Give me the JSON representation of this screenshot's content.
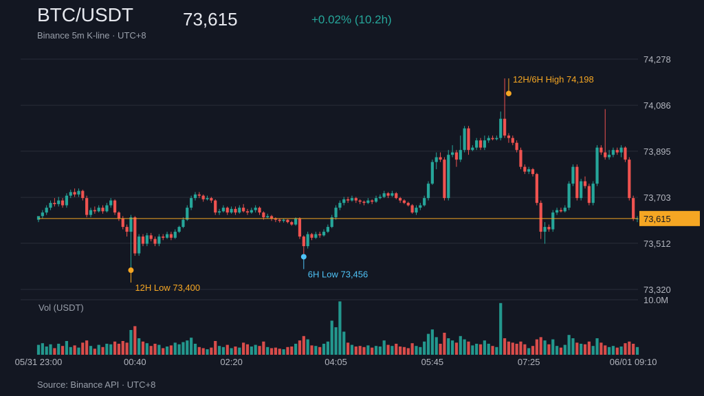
{
  "header": {
    "pair": "BTC/USDT",
    "last_price": "73,615",
    "change": "+0.02% (10.2h)",
    "subtitle": "Binance 5m K-line · UTC+8"
  },
  "footer": {
    "source": "Source: Binance API · UTC+8"
  },
  "colors": {
    "up": "#26a69a",
    "down": "#ef5350",
    "marker": "#f5a623",
    "low_marker": "#4fc3f7",
    "background": "#131722"
  },
  "chart_data": {
    "type": "candlestick",
    "price_axis": {
      "ylim": [
        73320,
        74278
      ],
      "ticks": [
        73320,
        73512,
        73703,
        73895,
        74086,
        74278
      ],
      "tick_labels": [
        "73,320",
        "73,512",
        "73,703",
        "73,895",
        "74,086",
        "74,278"
      ]
    },
    "last_price_label": "73,615",
    "last_price_value": 73615,
    "time_axis": {
      "tick_labels": [
        "05/31 23:00",
        "00:40",
        "02:20",
        "04:05",
        "05:45",
        "07:25",
        "06/01 09:10"
      ],
      "tick_index": [
        0,
        24,
        48,
        74,
        98,
        122,
        148
      ]
    },
    "annotations": [
      {
        "label": "12H/6H High 74,198",
        "index": 117,
        "value": 74198,
        "kind": "high"
      },
      {
        "label": "12H Low 73,400",
        "index": 23,
        "value": 73400,
        "kind": "low12"
      },
      {
        "label": "6H Low 73,456",
        "index": 66,
        "value": 73456,
        "kind": "low6"
      }
    ],
    "volume": {
      "label": "Vol (USDT)",
      "max_label": "10.0M",
      "max": 10
    },
    "candles": [
      [
        73610,
        73625,
        73620,
        73600,
        1.8
      ],
      [
        73625,
        73640,
        73650,
        73615,
        2.1
      ],
      [
        73640,
        73660,
        73670,
        73630,
        1.5
      ],
      [
        73660,
        73680,
        73690,
        73650,
        1.9
      ],
      [
        73680,
        73675,
        73700,
        73665,
        1.2
      ],
      [
        73675,
        73690,
        73705,
        73665,
        2.0
      ],
      [
        73690,
        73670,
        73700,
        73660,
        1.6
      ],
      [
        73670,
        73710,
        73720,
        73660,
        2.5
      ],
      [
        73710,
        73725,
        73735,
        73700,
        1.4
      ],
      [
        73725,
        73715,
        73740,
        73705,
        1.7
      ],
      [
        73715,
        73730,
        73740,
        73705,
        1.3
      ],
      [
        73730,
        73700,
        73735,
        73690,
        2.2
      ],
      [
        73700,
        73630,
        73710,
        73620,
        2.6
      ],
      [
        73630,
        73650,
        73660,
        73620,
        1.6
      ],
      [
        73650,
        73645,
        73665,
        73635,
        1.1
      ],
      [
        73645,
        73660,
        73670,
        73640,
        1.8
      ],
      [
        73660,
        73645,
        73670,
        73635,
        1.4
      ],
      [
        73645,
        73670,
        73680,
        73640,
        2.0
      ],
      [
        73670,
        73690,
        73700,
        73660,
        1.9
      ],
      [
        73690,
        73640,
        73695,
        73630,
        2.4
      ],
      [
        73640,
        73615,
        73645,
        73605,
        2.0
      ],
      [
        73615,
        73580,
        73625,
        73570,
        2.5
      ],
      [
        73580,
        73560,
        73590,
        73540,
        2.2
      ],
      [
        73560,
        73620,
        73630,
        73400,
        4.5
      ],
      [
        73620,
        73470,
        73625,
        73460,
        5.2
      ],
      [
        73470,
        73540,
        73550,
        73460,
        3.0
      ],
      [
        73540,
        73510,
        73550,
        73500,
        2.4
      ],
      [
        73510,
        73545,
        73555,
        73500,
        2.1
      ],
      [
        73545,
        73530,
        73555,
        73520,
        1.6
      ],
      [
        73530,
        73510,
        73540,
        73500,
        2.0
      ],
      [
        73510,
        73540,
        73550,
        73500,
        1.8
      ],
      [
        73540,
        73535,
        73550,
        73525,
        1.2
      ],
      [
        73535,
        73550,
        73560,
        73530,
        1.5
      ],
      [
        73550,
        73535,
        73560,
        73525,
        1.7
      ],
      [
        73535,
        73560,
        73570,
        73530,
        2.2
      ],
      [
        73560,
        73580,
        73585,
        73555,
        1.9
      ],
      [
        73580,
        73610,
        73620,
        73575,
        2.3
      ],
      [
        73610,
        73660,
        73670,
        73605,
        2.6
      ],
      [
        73660,
        73700,
        73710,
        73650,
        3.1
      ],
      [
        73700,
        73715,
        73725,
        73690,
        2.0
      ],
      [
        73715,
        73710,
        73725,
        73700,
        1.4
      ],
      [
        73710,
        73695,
        73715,
        73685,
        1.2
      ],
      [
        73695,
        73700,
        73710,
        73690,
        1.0
      ],
      [
        73700,
        73690,
        73705,
        73680,
        1.3
      ],
      [
        73690,
        73640,
        73695,
        73630,
        2.5
      ],
      [
        73640,
        73645,
        73655,
        73630,
        1.6
      ],
      [
        73645,
        73660,
        73670,
        73640,
        1.4
      ],
      [
        73660,
        73640,
        73665,
        73630,
        1.8
      ],
      [
        73640,
        73655,
        73665,
        73635,
        1.2
      ],
      [
        73655,
        73640,
        73665,
        73630,
        1.5
      ],
      [
        73640,
        73660,
        73670,
        73635,
        1.3
      ],
      [
        73660,
        73645,
        73675,
        73640,
        2.2
      ],
      [
        73645,
        73640,
        73655,
        73630,
        1.9
      ],
      [
        73640,
        73650,
        73660,
        73635,
        1.5
      ],
      [
        73650,
        73660,
        73670,
        73640,
        1.8
      ],
      [
        73660,
        73640,
        73665,
        73630,
        1.6
      ],
      [
        73640,
        73620,
        73645,
        73610,
        2.4
      ],
      [
        73620,
        73625,
        73635,
        73615,
        1.4
      ],
      [
        73625,
        73615,
        73630,
        73605,
        1.2
      ],
      [
        73615,
        73610,
        73620,
        73600,
        1.3
      ],
      [
        73610,
        73605,
        73615,
        73598,
        1.1
      ],
      [
        73605,
        73610,
        73615,
        73598,
        1.0
      ],
      [
        73610,
        73600,
        73612,
        73595,
        1.4
      ],
      [
        73600,
        73590,
        73605,
        73585,
        1.5
      ],
      [
        73590,
        73615,
        73620,
        73585,
        2.0
      ],
      [
        73615,
        73540,
        73620,
        73530,
        2.6
      ],
      [
        73540,
        73500,
        73545,
        73456,
        3.4
      ],
      [
        73500,
        73550,
        73560,
        73490,
        2.8
      ],
      [
        73550,
        73535,
        73555,
        73525,
        1.7
      ],
      [
        73535,
        73550,
        73560,
        73530,
        1.6
      ],
      [
        73550,
        73545,
        73560,
        73535,
        1.4
      ],
      [
        73545,
        73560,
        73570,
        73540,
        2.0
      ],
      [
        73560,
        73580,
        73590,
        73555,
        2.4
      ],
      [
        73580,
        73620,
        73630,
        73575,
        6.2
      ],
      [
        73620,
        73660,
        73670,
        73610,
        5.0
      ],
      [
        73660,
        73680,
        73690,
        73650,
        9.7
      ],
      [
        73680,
        73695,
        73705,
        73670,
        4.2
      ],
      [
        73695,
        73690,
        73705,
        73680,
        2.2
      ],
      [
        73690,
        73700,
        73710,
        73685,
        1.8
      ],
      [
        73700,
        73690,
        73705,
        73680,
        1.5
      ],
      [
        73690,
        73685,
        73695,
        73675,
        1.6
      ],
      [
        73685,
        73680,
        73690,
        73670,
        1.4
      ],
      [
        73680,
        73690,
        73700,
        73675,
        1.7
      ],
      [
        73690,
        73685,
        73695,
        73675,
        1.3
      ],
      [
        73685,
        73700,
        73710,
        73680,
        1.6
      ],
      [
        73700,
        73705,
        73715,
        73695,
        1.5
      ],
      [
        73705,
        73720,
        73730,
        73700,
        2.6
      ],
      [
        73720,
        73710,
        73725,
        73700,
        1.8
      ],
      [
        73710,
        73720,
        73730,
        73705,
        1.6
      ],
      [
        73720,
        73700,
        73725,
        73695,
        2.0
      ],
      [
        73700,
        73690,
        73705,
        73680,
        1.5
      ],
      [
        73690,
        73680,
        73695,
        73675,
        1.4
      ],
      [
        73680,
        73670,
        73685,
        73665,
        1.2
      ],
      [
        73670,
        73640,
        73675,
        73635,
        2.1
      ],
      [
        73640,
        73660,
        73670,
        73630,
        1.6
      ],
      [
        73660,
        73670,
        73680,
        73650,
        1.4
      ],
      [
        73670,
        73700,
        73710,
        73665,
        2.4
      ],
      [
        73700,
        73760,
        73770,
        73690,
        3.8
      ],
      [
        73760,
        73850,
        73860,
        73755,
        4.6
      ],
      [
        73850,
        73870,
        73890,
        73820,
        3.2
      ],
      [
        73870,
        73860,
        73890,
        73850,
        2.0
      ],
      [
        73860,
        73700,
        73870,
        73690,
        4.0
      ],
      [
        73700,
        73880,
        73900,
        73690,
        3.0
      ],
      [
        73880,
        73890,
        73920,
        73870,
        2.6
      ],
      [
        73890,
        73860,
        73900,
        73830,
        2.2
      ],
      [
        73860,
        73900,
        73960,
        73850,
        3.4
      ],
      [
        73900,
        73990,
        74000,
        73890,
        2.8
      ],
      [
        73990,
        73900,
        74000,
        73880,
        2.4
      ],
      [
        73900,
        73910,
        73920,
        73895,
        1.7
      ],
      [
        73910,
        73940,
        73950,
        73900,
        2.0
      ],
      [
        73940,
        73910,
        73950,
        73900,
        1.9
      ],
      [
        73910,
        73940,
        73960,
        73900,
        2.6
      ],
      [
        73940,
        73950,
        73960,
        73930,
        2.0
      ],
      [
        73950,
        73945,
        73960,
        73940,
        1.6
      ],
      [
        73945,
        73950,
        73960,
        73940,
        1.4
      ],
      [
        73950,
        74030,
        74060,
        73940,
        9.4
      ],
      [
        74030,
        73960,
        74198,
        73950,
        3.0
      ],
      [
        73960,
        73950,
        73970,
        73930,
        2.4
      ],
      [
        73950,
        73930,
        73960,
        73920,
        2.2
      ],
      [
        73930,
        73900,
        73940,
        73890,
        2.0
      ],
      [
        73900,
        73830,
        73910,
        73820,
        2.4
      ],
      [
        73830,
        73810,
        73840,
        73800,
        1.9
      ],
      [
        73810,
        73820,
        73830,
        73800,
        1.2
      ],
      [
        73820,
        73800,
        73825,
        73790,
        1.6
      ],
      [
        73800,
        73680,
        73805,
        73670,
        2.8
      ],
      [
        73680,
        73560,
        73690,
        73530,
        3.2
      ],
      [
        73560,
        73580,
        73600,
        73510,
        2.6
      ],
      [
        73580,
        73570,
        73590,
        73560,
        1.9
      ],
      [
        73570,
        73640,
        73650,
        73560,
        2.8
      ],
      [
        73640,
        73650,
        73660,
        73630,
        1.6
      ],
      [
        73650,
        73645,
        73660,
        73640,
        1.3
      ],
      [
        73645,
        73660,
        73670,
        73640,
        1.8
      ],
      [
        73660,
        73760,
        73770,
        73650,
        3.6
      ],
      [
        73760,
        73830,
        73840,
        73750,
        3.0
      ],
      [
        73830,
        73700,
        73840,
        73690,
        2.2
      ],
      [
        73700,
        73770,
        73780,
        73690,
        2.0
      ],
      [
        73770,
        73750,
        73790,
        73740,
        1.9
      ],
      [
        73750,
        73680,
        73760,
        73670,
        2.4
      ],
      [
        73680,
        73760,
        73770,
        73670,
        1.6
      ],
      [
        73760,
        73910,
        73920,
        73750,
        3.0
      ],
      [
        73910,
        73890,
        73920,
        73880,
        2.2
      ],
      [
        73890,
        73870,
        74070,
        73860,
        1.7
      ],
      [
        73870,
        73880,
        73900,
        73860,
        1.4
      ],
      [
        73880,
        73900,
        73910,
        73870,
        1.6
      ],
      [
        73900,
        73890,
        73910,
        73880,
        1.3
      ],
      [
        73890,
        73910,
        73920,
        73870,
        1.5
      ],
      [
        73910,
        73860,
        73915,
        73850,
        2.1
      ],
      [
        73860,
        73700,
        73870,
        73690,
        2.4
      ],
      [
        73700,
        73615,
        73710,
        73605,
        2.0
      ],
      [
        73615,
        73615,
        73625,
        73600,
        1.4
      ]
    ]
  }
}
